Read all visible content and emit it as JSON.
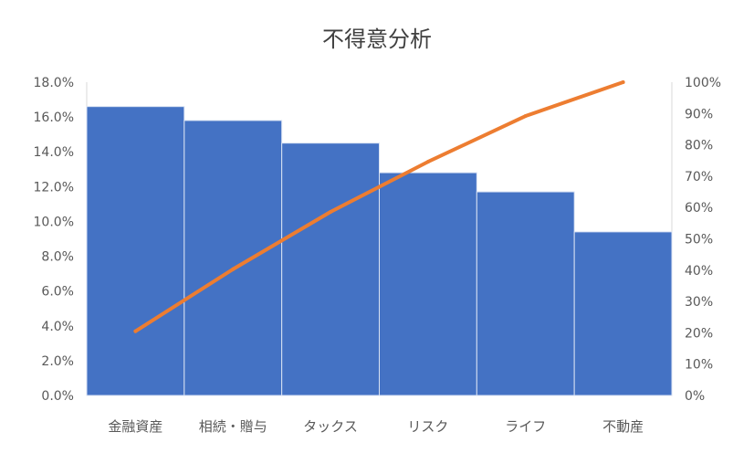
{
  "chart_data": {
    "type": "pareto",
    "title": "不得意分析",
    "categories": [
      "金融資産",
      "相続・贈与",
      "タックス",
      "リスク",
      "ライフ",
      "不動産"
    ],
    "series": [
      {
        "type": "bar",
        "axis": "left",
        "values": [
          16.6,
          15.8,
          14.5,
          12.8,
          11.7,
          9.4
        ]
      },
      {
        "type": "line",
        "axis": "right",
        "values": [
          20.5,
          40.3,
          58.6,
          74.6,
          89.2,
          100
        ]
      }
    ],
    "y_left": {
      "min": 0,
      "max": 18,
      "step": 2,
      "format": "0.0%"
    },
    "y_right": {
      "min": 0,
      "max": 100,
      "step": 10,
      "format": "0%"
    },
    "grid": false,
    "colors": {
      "bar": "#4472C4",
      "bar_border": "#D9E2F3",
      "line": "#ED7D31",
      "axis": "#D9D9D9"
    }
  }
}
